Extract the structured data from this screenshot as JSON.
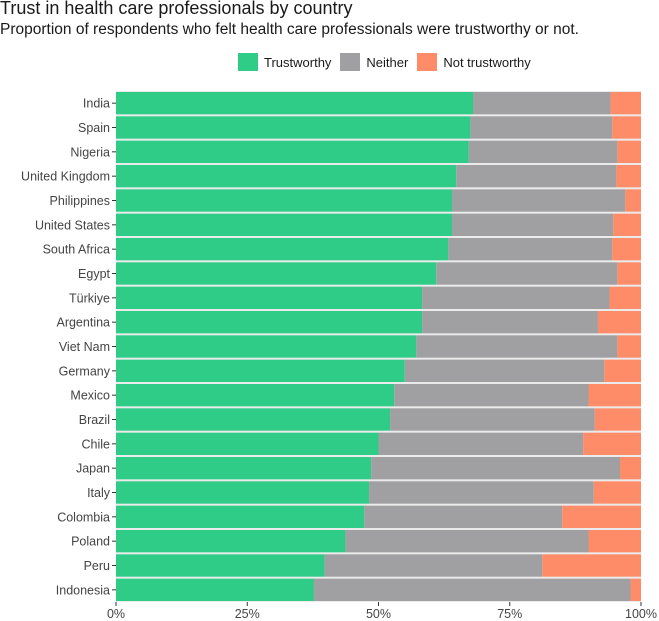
{
  "chart_data": {
    "type": "bar",
    "orientation": "horizontal",
    "stacked": true,
    "title": "Trust in health care professionals by country",
    "subtitle": "Proportion of respondents who felt health care professionals were trustworthy or not.",
    "xlabel": "",
    "ylabel": "",
    "xlim": [
      0,
      1
    ],
    "x_ticks": [
      "0%",
      "25%",
      "50%",
      "75%",
      "100%"
    ],
    "legend_position": "top",
    "categories": [
      "India",
      "Spain",
      "Nigeria",
      "United Kingdom",
      "Philippines",
      "United States",
      "South Africa",
      "Egypt",
      "Türkiye",
      "Argentina",
      "Viet Nam",
      "Germany",
      "Mexico",
      "Brazil",
      "Chile",
      "Japan",
      "Italy",
      "Colombia",
      "Poland",
      "Peru",
      "Indonesia"
    ],
    "series": [
      {
        "name": "Trustworthy",
        "color": "#2ecc87",
        "values": [
          0.68,
          0.675,
          0.672,
          0.648,
          0.64,
          0.64,
          0.633,
          0.61,
          0.583,
          0.583,
          0.572,
          0.55,
          0.53,
          0.522,
          0.5,
          0.486,
          0.482,
          0.473,
          0.437,
          0.397,
          0.377
        ]
      },
      {
        "name": "Neither",
        "color": "#a0a0a3",
        "values": [
          0.262,
          0.27,
          0.283,
          0.305,
          0.33,
          0.307,
          0.312,
          0.345,
          0.357,
          0.335,
          0.383,
          0.38,
          0.37,
          0.39,
          0.39,
          0.474,
          0.428,
          0.377,
          0.463,
          0.415,
          0.603
        ]
      },
      {
        "name": "Not trustworthy",
        "color": "#ff8c69",
        "values": [
          0.058,
          0.055,
          0.045,
          0.047,
          0.03,
          0.053,
          0.055,
          0.045,
          0.06,
          0.082,
          0.045,
          0.07,
          0.1,
          0.088,
          0.11,
          0.04,
          0.09,
          0.15,
          0.1,
          0.188,
          0.02
        ]
      }
    ]
  }
}
